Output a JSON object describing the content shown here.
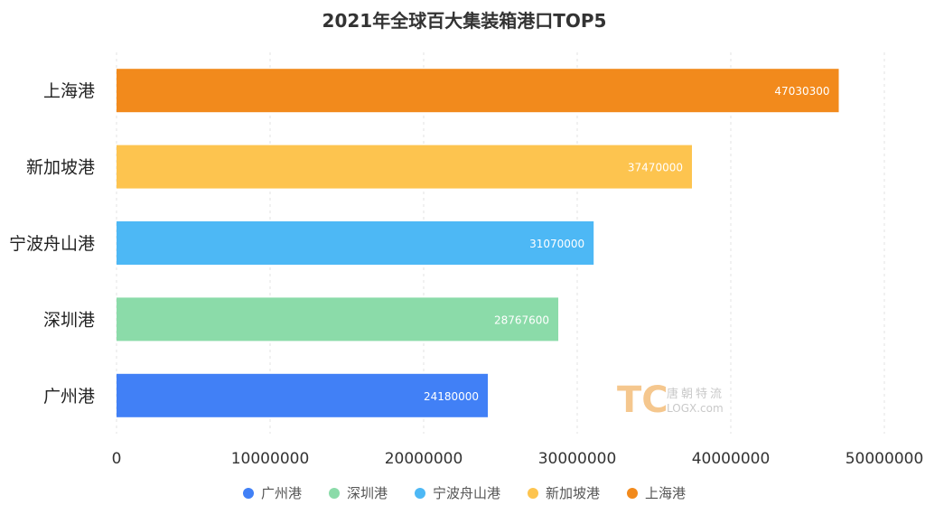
{
  "chart_data": {
    "type": "bar",
    "orientation": "horizontal",
    "title": "2021年全球百大集装箱港口TOP5",
    "categories": [
      "上海港",
      "新加坡港",
      "宁波舟山港",
      "深圳港",
      "广州港"
    ],
    "values": [
      47030300,
      37470000,
      31070000,
      28767600,
      24180000
    ],
    "colors": [
      "#f28a1c",
      "#fdc44f",
      "#4db8f5",
      "#8bdba9",
      "#4180f6"
    ],
    "xlim": [
      0,
      50000000
    ],
    "xticks": [
      "0",
      "10000000",
      "20000000",
      "30000000",
      "40000000",
      "50000000"
    ],
    "grid": true,
    "legend": {
      "position": "bottom",
      "items": [
        {
          "label": "广州港",
          "color": "#4180f6"
        },
        {
          "label": "深圳港",
          "color": "#8bdba9"
        },
        {
          "label": "宁波舟山港",
          "color": "#4db8f5"
        },
        {
          "label": "新加坡港",
          "color": "#fdc44f"
        },
        {
          "label": "上海港",
          "color": "#f28a1c"
        }
      ]
    }
  },
  "watermark": {
    "logo": "TC",
    "name": "唐朝特流",
    "url": "LOGX.com"
  }
}
